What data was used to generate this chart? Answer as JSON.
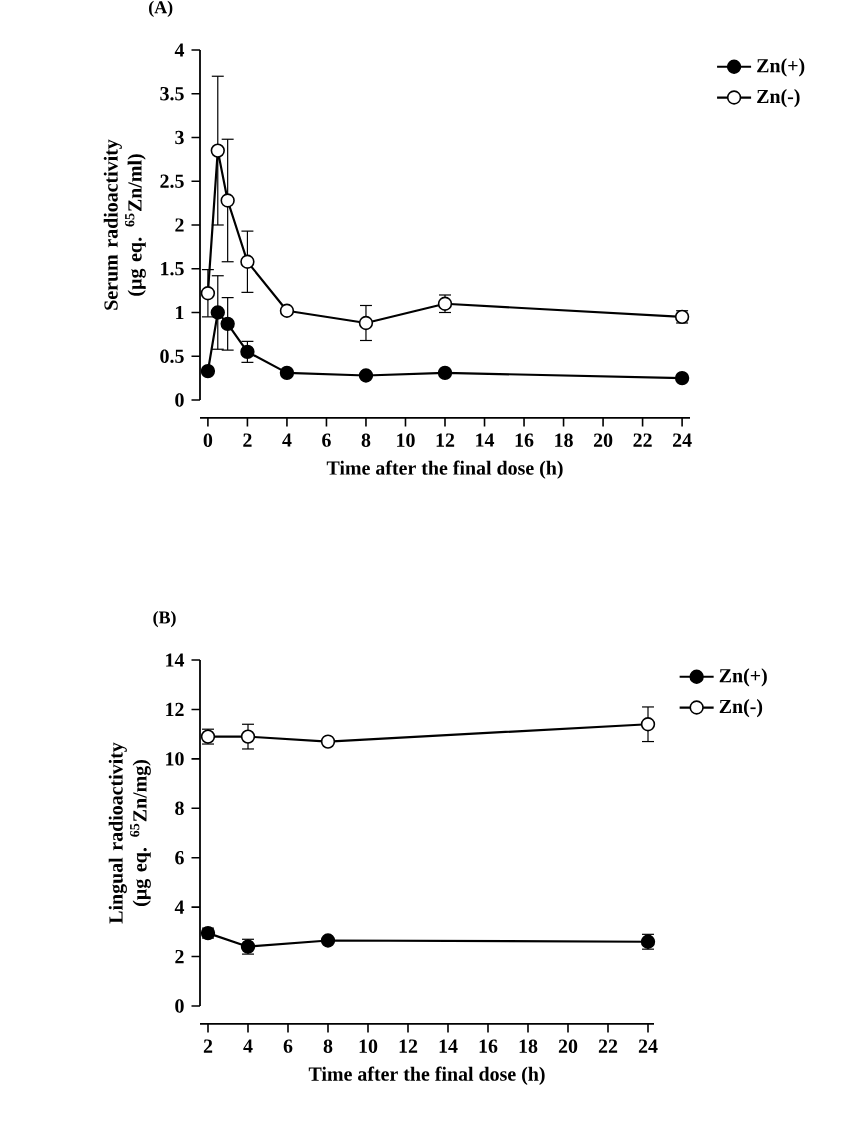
{
  "chart_data": [
    {
      "type": "line",
      "title": "(A)",
      "xlabel": "Time after the final dose (h)",
      "ylabel": "Serum radioactivity (µg eq. $^{65}$Zn/ml)",
      "x": [
        0,
        0.5,
        1,
        2,
        4,
        8,
        12,
        24
      ],
      "xlim": [
        -0.4,
        24.4
      ],
      "ylim": [
        0,
        4
      ],
      "xticks": [
        0,
        2,
        4,
        6,
        8,
        10,
        12,
        14,
        16,
        18,
        20,
        22,
        24
      ],
      "yticks": [
        0,
        {
          "value": 0.5,
          "label": "0.5"
        },
        1,
        {
          "value": 1.5,
          "label": "1.5"
        },
        2,
        {
          "value": 2.5,
          "label": "2.5"
        },
        3,
        {
          "value": 3.5,
          "label": "3.5"
        },
        4
      ],
      "legend": "top right",
      "marker": "circle",
      "series": [
        {
          "name": "Zn(+)",
          "color": "#000000",
          "values": [
            0.33,
            1.0,
            0.87,
            0.55,
            0.31,
            0.28,
            0.31,
            0.25
          ],
          "errors": [
            null,
            0.42,
            0.3,
            0.12,
            null,
            null,
            null,
            null
          ]
        },
        {
          "name": "Zn(-)",
          "color": "#ffffff",
          "values": [
            1.22,
            2.85,
            2.28,
            1.58,
            1.02,
            0.88,
            1.1,
            0.95
          ],
          "errors": [
            0.27,
            0.85,
            0.7,
            0.35,
            null,
            0.2,
            0.1,
            0.07
          ]
        }
      ]
    },
    {
      "type": "line",
      "title": "(B)",
      "xlabel": "Time after the final dose (h)",
      "ylabel": "Lingual radioactivity (µg eq. $^{65}$Zn/mg)",
      "x": [
        2,
        4,
        8,
        24
      ],
      "xlim": [
        1.6,
        24.3
      ],
      "ylim": [
        0,
        14
      ],
      "xticks": [
        2,
        4,
        6,
        8,
        10,
        12,
        14,
        16,
        18,
        20,
        22,
        24
      ],
      "yticks": [
        0,
        2,
        4,
        6,
        8,
        10,
        12,
        14
      ],
      "legend": "top right",
      "marker": "circle",
      "series": [
        {
          "name": "Zn(+)",
          "color": "#000000",
          "values": [
            2.95,
            2.4,
            2.65,
            2.6
          ],
          "errors": [
            0.2,
            0.3,
            null,
            0.3
          ]
        },
        {
          "name": "Zn(-)",
          "color": "#ffffff",
          "values": [
            10.9,
            10.9,
            10.7,
            11.4
          ],
          "errors": [
            0.3,
            0.5,
            null,
            0.7
          ]
        }
      ]
    }
  ]
}
